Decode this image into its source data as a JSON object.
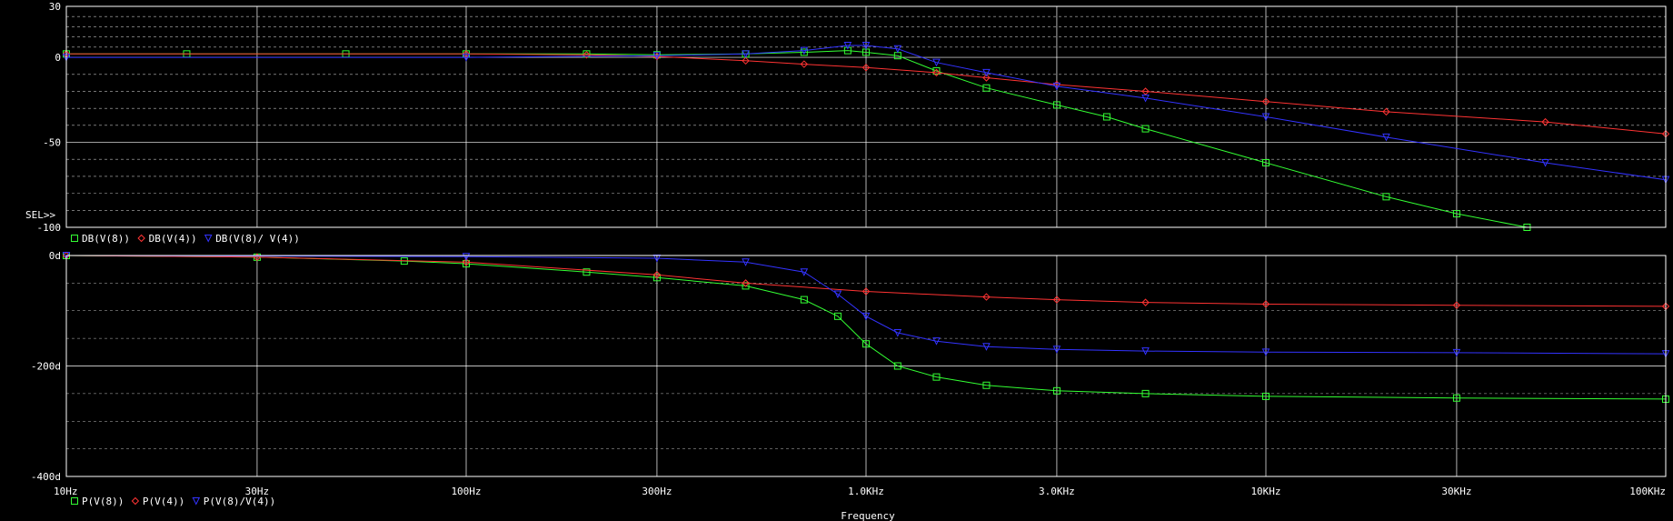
{
  "colors": {
    "background": "#000000",
    "frame": "#ffffff",
    "grid": "#ffffff",
    "series_green": "#33ff33",
    "series_red": "#ff3333",
    "series_blue": "#3333ff"
  },
  "chart_data": [
    {
      "type": "line",
      "panel": "magnitude",
      "xscale": "log",
      "xlim": [
        10,
        100000
      ],
      "ylim": [
        -100,
        30
      ],
      "yticks": [
        30,
        0,
        -50,
        -100
      ],
      "ytick_labels": [
        "30",
        "0",
        "-50",
        "-100"
      ],
      "selected_marker": "SEL>>",
      "legend": [
        {
          "marker": "square",
          "label": "DB(V(8))",
          "color": "#33ff33"
        },
        {
          "marker": "diamond",
          "label": "DB(V(4))",
          "color": "#ff3333"
        },
        {
          "marker": "triangle-down",
          "label": "DB(V(8)/ V(4))",
          "color": "#3333ff"
        }
      ],
      "series": [
        {
          "name": "DB(V(8))",
          "color": "#33ff33",
          "marker": "square",
          "x": [
            10,
            20,
            50,
            100,
            200,
            300,
            500,
            700,
            900,
            1000,
            1200,
            1500,
            2000,
            3000,
            4000,
            5000,
            10000,
            20000,
            30000,
            45000
          ],
          "y": [
            2,
            2,
            2,
            2,
            2,
            1.5,
            2,
            3,
            4,
            3,
            1,
            -8,
            -18,
            -28,
            -35,
            -42,
            -62,
            -82,
            -92,
            -100
          ]
        },
        {
          "name": "DB(V(4))",
          "color": "#ff3333",
          "marker": "diamond",
          "x": [
            10,
            100,
            200,
            300,
            500,
            700,
            1000,
            1500,
            2000,
            3000,
            5000,
            10000,
            20000,
            50000,
            100000
          ],
          "y": [
            2,
            2,
            1.5,
            0.5,
            -2,
            -4,
            -6,
            -9,
            -12,
            -16,
            -20,
            -26,
            -32,
            -38,
            -45
          ]
        },
        {
          "name": "DB(V(8)/ V(4))",
          "color": "#3333ff",
          "marker": "triangle-down",
          "x": [
            10,
            100,
            300,
            500,
            700,
            900,
            1000,
            1200,
            1500,
            2000,
            3000,
            5000,
            10000,
            20000,
            50000,
            100000
          ],
          "y": [
            0,
            0,
            1,
            2,
            4,
            7,
            7,
            5,
            -3,
            -9,
            -17,
            -24,
            -35,
            -47,
            -62,
            -72
          ]
        }
      ]
    },
    {
      "type": "line",
      "panel": "phase",
      "xscale": "log",
      "xlim": [
        10,
        100000
      ],
      "ylim": [
        -400,
        0
      ],
      "yticks": [
        0,
        -200,
        -400
      ],
      "ytick_labels": [
        "0d",
        "-200d",
        "-400d"
      ],
      "xticks": [
        10,
        30,
        100,
        300,
        1000,
        3000,
        10000,
        30000,
        100000
      ],
      "xtick_labels": [
        "10Hz",
        "30Hz",
        "100Hz",
        "300Hz",
        "1.0KHz",
        "3.0KHz",
        "10KHz",
        "30KHz",
        "100KHz"
      ],
      "xlabel": "Frequency",
      "legend": [
        {
          "marker": "square",
          "label": "P(V(8))",
          "color": "#33ff33"
        },
        {
          "marker": "diamond",
          "label": "P(V(4))",
          "color": "#ff3333"
        },
        {
          "marker": "triangle-down",
          "label": "P(V(8)/V(4))",
          "color": "#3333ff"
        }
      ],
      "series": [
        {
          "name": "P(V(8))",
          "color": "#33ff33",
          "marker": "square",
          "x": [
            10,
            30,
            70,
            100,
            200,
            300,
            500,
            700,
            850,
            1000,
            1200,
            1500,
            2000,
            3000,
            5000,
            10000,
            30000,
            100000
          ],
          "y": [
            0,
            -3,
            -10,
            -15,
            -30,
            -40,
            -55,
            -80,
            -110,
            -160,
            -200,
            -220,
            -235,
            -245,
            -250,
            -255,
            -258,
            -260
          ]
        },
        {
          "name": "P(V(4))",
          "color": "#ff3333",
          "marker": "diamond",
          "x": [
            10,
            30,
            100,
            300,
            500,
            1000,
            2000,
            3000,
            5000,
            10000,
            30000,
            100000
          ],
          "y": [
            0,
            -3,
            -12,
            -35,
            -50,
            -65,
            -75,
            -80,
            -85,
            -88,
            -90,
            -92
          ]
        },
        {
          "name": "P(V(8)/V(4))",
          "color": "#3333ff",
          "marker": "triangle-down",
          "x": [
            10,
            100,
            300,
            500,
            700,
            850,
            1000,
            1200,
            1500,
            2000,
            3000,
            5000,
            10000,
            30000,
            100000
          ],
          "y": [
            0,
            -2,
            -5,
            -12,
            -30,
            -70,
            -110,
            -140,
            -155,
            -165,
            -170,
            -173,
            -175,
            -176,
            -178
          ]
        }
      ]
    }
  ]
}
